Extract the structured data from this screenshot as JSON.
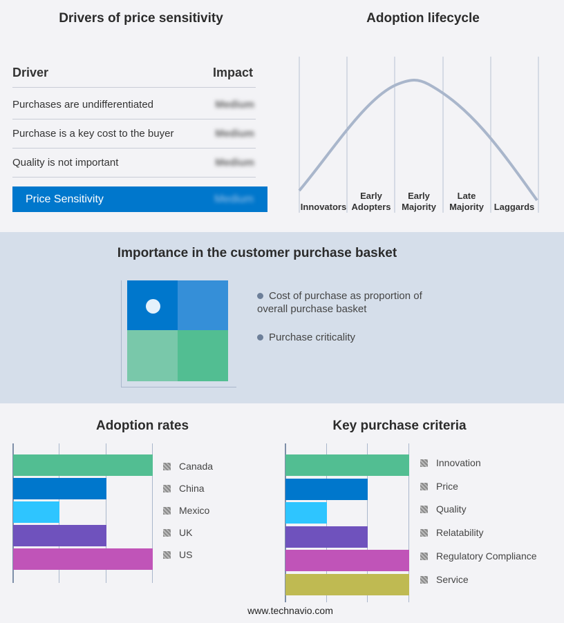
{
  "drivers": {
    "title": "Drivers of price sensitivity",
    "col_driver": "Driver",
    "col_impact": "Impact",
    "rows": [
      {
        "driver": "Purchases are undifferentiated",
        "impact": "Medium"
      },
      {
        "driver": "Purchase is a key cost to the buyer",
        "impact": "Medium"
      },
      {
        "driver": "Quality is not important",
        "impact": "Medium"
      }
    ],
    "summary": {
      "label": "Price Sensitivity",
      "impact": "Medium"
    },
    "accent": "#0077cc"
  },
  "lifecycle": {
    "title": "Adoption lifecycle",
    "stages": [
      "Innovators",
      "Early Adopters",
      "Early Majority",
      "Late Majority",
      "Laggards"
    ],
    "curve_color": "#a9b6cb"
  },
  "basket": {
    "title": "Importance in the customer purchase basket",
    "legend": [
      "Cost of purchase as proportion of overall purchase basket",
      "Purchase criticality"
    ],
    "colors": [
      "#0077cc",
      "#358fd8",
      "#79c8aa",
      "#52be92"
    ]
  },
  "chart_data": [
    {
      "type": "bar",
      "orientation": "horizontal",
      "title": "Adoption rates",
      "categories": [
        "Canada",
        "China",
        "Mexico",
        "UK",
        "US"
      ],
      "values": [
        3,
        2,
        1,
        2,
        3
      ],
      "xlim": [
        0,
        3
      ],
      "grid": true,
      "legend": "right",
      "colors": [
        "#52be92",
        "#0077cc",
        "#2ec5ff",
        "#6f52bd",
        "#c054b8"
      ]
    },
    {
      "type": "bar",
      "orientation": "horizontal",
      "title": "Key purchase criteria",
      "categories": [
        "Innovation",
        "Price",
        "Quality",
        "Relatability",
        "Regulatory Compliance",
        "Service"
      ],
      "values": [
        3,
        2,
        1,
        2,
        3,
        3
      ],
      "xlim": [
        0,
        3
      ],
      "grid": true,
      "legend": "right",
      "colors": [
        "#52be92",
        "#0077cc",
        "#2ec5ff",
        "#6f52bd",
        "#c054b8",
        "#bfba52"
      ]
    }
  ],
  "footer": "www.technavio.com"
}
